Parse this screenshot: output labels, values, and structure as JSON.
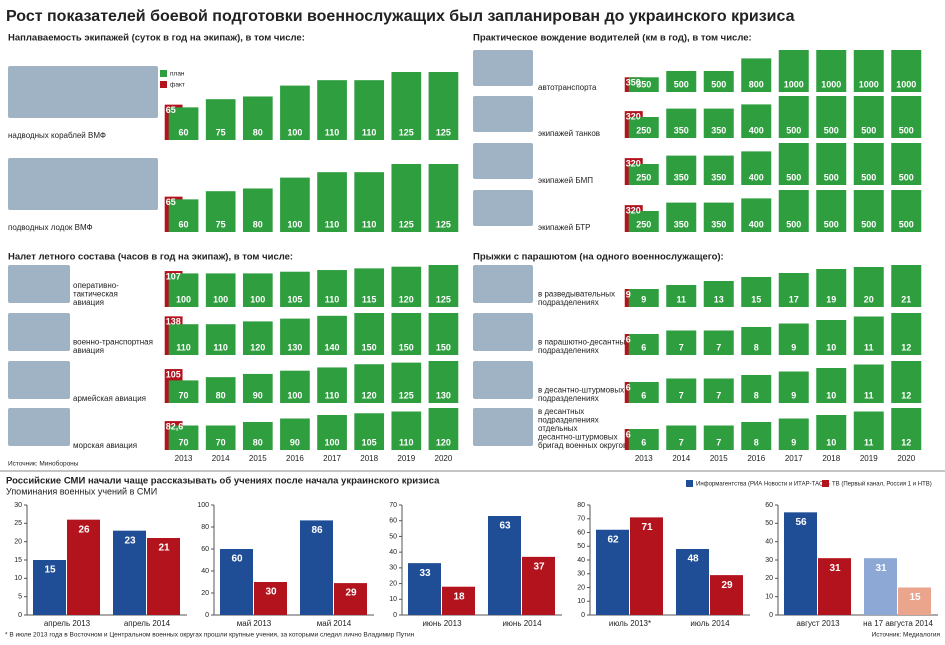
{
  "title": "Рост показателей боевой подготовки военнослужащих был запланирован до украинского кризиса",
  "legend": [
    {
      "name": "план",
      "color": "#2f9e3f"
    },
    {
      "name": "факт",
      "color": "#b3131d"
    }
  ],
  "source_top": "Источник: Минобороны",
  "chart_data": [
    {
      "type": "plan_fact",
      "title": "Наплаваемость экипажей (суток в год на экипаж), в том числе:",
      "rows": [
        {
          "label": [
            "надводных кораблей ВМФ"
          ],
          "values": [
            60,
            75,
            80,
            100,
            110,
            110,
            125,
            125
          ],
          "fact": 65
        },
        {
          "label": [
            "подводных лодок ВМФ"
          ],
          "values": [
            60,
            75,
            80,
            100,
            110,
            110,
            125,
            125
          ],
          "fact": 65
        }
      ]
    },
    {
      "type": "plan_fact",
      "title": "Практическое вождение водителей (км в год), в том числе:",
      "rows": [
        {
          "label": [
            "автотранспорта"
          ],
          "values": [
            350,
            500,
            500,
            800,
            1000,
            1000,
            1000,
            1000
          ],
          "fact": 350
        },
        {
          "label": [
            "экипажей танков"
          ],
          "values": [
            250,
            350,
            350,
            400,
            500,
            500,
            500,
            500
          ],
          "fact": 320
        },
        {
          "label": [
            "экипажей БМП"
          ],
          "values": [
            250,
            350,
            350,
            400,
            500,
            500,
            500,
            500
          ],
          "fact": 320
        },
        {
          "label": [
            "экипажей БТР"
          ],
          "values": [
            250,
            350,
            350,
            400,
            500,
            500,
            500,
            500
          ],
          "fact": 320
        }
      ]
    },
    {
      "type": "plan_fact",
      "title": "Налет летного состава (часов в год на экипаж), в том числе:",
      "categories": [
        "2013",
        "2014",
        "2015",
        "2016",
        "2017",
        "2018",
        "2019",
        "2020"
      ],
      "rows": [
        {
          "label": [
            "оперативно-",
            "тактическая",
            "авиация"
          ],
          "values": [
            100,
            100,
            100,
            105,
            110,
            115,
            120,
            125
          ],
          "fact": 107
        },
        {
          "label": [
            "военно-транспортная",
            "авиация"
          ],
          "values": [
            110,
            110,
            120,
            130,
            140,
            150,
            150,
            150
          ],
          "fact": 138
        },
        {
          "label": [
            "армейская авиация"
          ],
          "values": [
            70,
            80,
            90,
            100,
            110,
            120,
            125,
            130
          ],
          "fact": 105
        },
        {
          "label": [
            "морская авиация"
          ],
          "values": [
            70,
            70,
            80,
            90,
            100,
            105,
            110,
            120
          ],
          "fact": 82.6,
          "fact_label": "82,6"
        }
      ]
    },
    {
      "type": "plan_fact",
      "title": "Прыжки с парашютом (на одного военнослужащего):",
      "categories": [
        "2013",
        "2014",
        "2015",
        "2016",
        "2017",
        "2018",
        "2019",
        "2020"
      ],
      "rows": [
        {
          "label": [
            "в разведывательных",
            "подразделениях"
          ],
          "values": [
            9,
            11,
            13,
            15,
            17,
            19,
            20,
            21
          ],
          "fact": 9
        },
        {
          "label": [
            "в парашютно-десантных",
            "подразделениях"
          ],
          "values": [
            6,
            7,
            7,
            8,
            9,
            10,
            11,
            12
          ],
          "fact": 6
        },
        {
          "label": [
            "в десантно-штурмовых",
            "подразделениях"
          ],
          "values": [
            6,
            7,
            7,
            8,
            9,
            10,
            11,
            12
          ],
          "fact": 6
        },
        {
          "label": [
            "в десантных",
            "подразделениях",
            "отдельных",
            "десантно-штурмовых",
            "бригад военных округов"
          ],
          "values": [
            6,
            7,
            7,
            8,
            9,
            10,
            11,
            12
          ],
          "fact": 6
        }
      ]
    },
    {
      "type": "grouped_bar",
      "categories": [
        "апрель 2013",
        "апрель 2014"
      ],
      "ylim": [
        0,
        30
      ],
      "yticks": [
        0,
        5,
        10,
        15,
        20,
        25,
        30
      ],
      "series": [
        {
          "values": [
            15,
            23
          ]
        },
        {
          "values": [
            26,
            21
          ]
        }
      ]
    },
    {
      "type": "grouped_bar",
      "categories": [
        "май 2013",
        "май 2014"
      ],
      "ylim": [
        0,
        100
      ],
      "yticks": [
        0,
        20,
        40,
        60,
        80,
        100
      ],
      "series": [
        {
          "values": [
            60,
            86
          ]
        },
        {
          "values": [
            30,
            29
          ]
        }
      ]
    },
    {
      "type": "grouped_bar",
      "categories": [
        "июнь 2013",
        "июнь 2014"
      ],
      "ylim": [
        0,
        70
      ],
      "yticks": [
        0,
        10,
        20,
        30,
        40,
        50,
        60,
        70
      ],
      "series": [
        {
          "values": [
            33,
            63
          ]
        },
        {
          "values": [
            18,
            37
          ]
        }
      ]
    },
    {
      "type": "grouped_bar",
      "categories": [
        "июль 2013*",
        "июль 2014"
      ],
      "ylim": [
        0,
        80
      ],
      "yticks": [
        0,
        10,
        20,
        30,
        40,
        50,
        60,
        70,
        80
      ],
      "series": [
        {
          "values": [
            62,
            48
          ]
        },
        {
          "values": [
            71,
            29
          ]
        }
      ]
    },
    {
      "type": "grouped_bar",
      "categories": [
        "август 2013",
        "на 17 августа 2014"
      ],
      "ylim": [
        0,
        60
      ],
      "yticks": [
        0,
        10,
        20,
        30,
        40,
        50,
        60
      ],
      "series": [
        {
          "values": [
            56,
            31
          ],
          "colors": [
            "#1f4e96",
            "#8ea8d6"
          ]
        },
        {
          "values": [
            31,
            15
          ],
          "colors": [
            "#b3131d",
            "#eba58c"
          ]
        }
      ]
    }
  ],
  "media": {
    "title": "Российские СМИ начали чаще рассказывать об учениях после начала украинского кризиса",
    "subtitle": "Упоминания военных учений в СМИ",
    "legend": [
      {
        "name": "Информагентства (РИА Новости и ИТАР-ТАСС)",
        "color": "#1f4e96"
      },
      {
        "name": "ТВ (Первый канал, Россия 1 и НТВ)",
        "color": "#b3131d"
      }
    ],
    "footnote": "* В июле 2013 года в Восточном и Центральном военных округах прошли крупные учения, за которыми следил лично Владимир Путин",
    "source": "Источник: Медиалогия"
  }
}
